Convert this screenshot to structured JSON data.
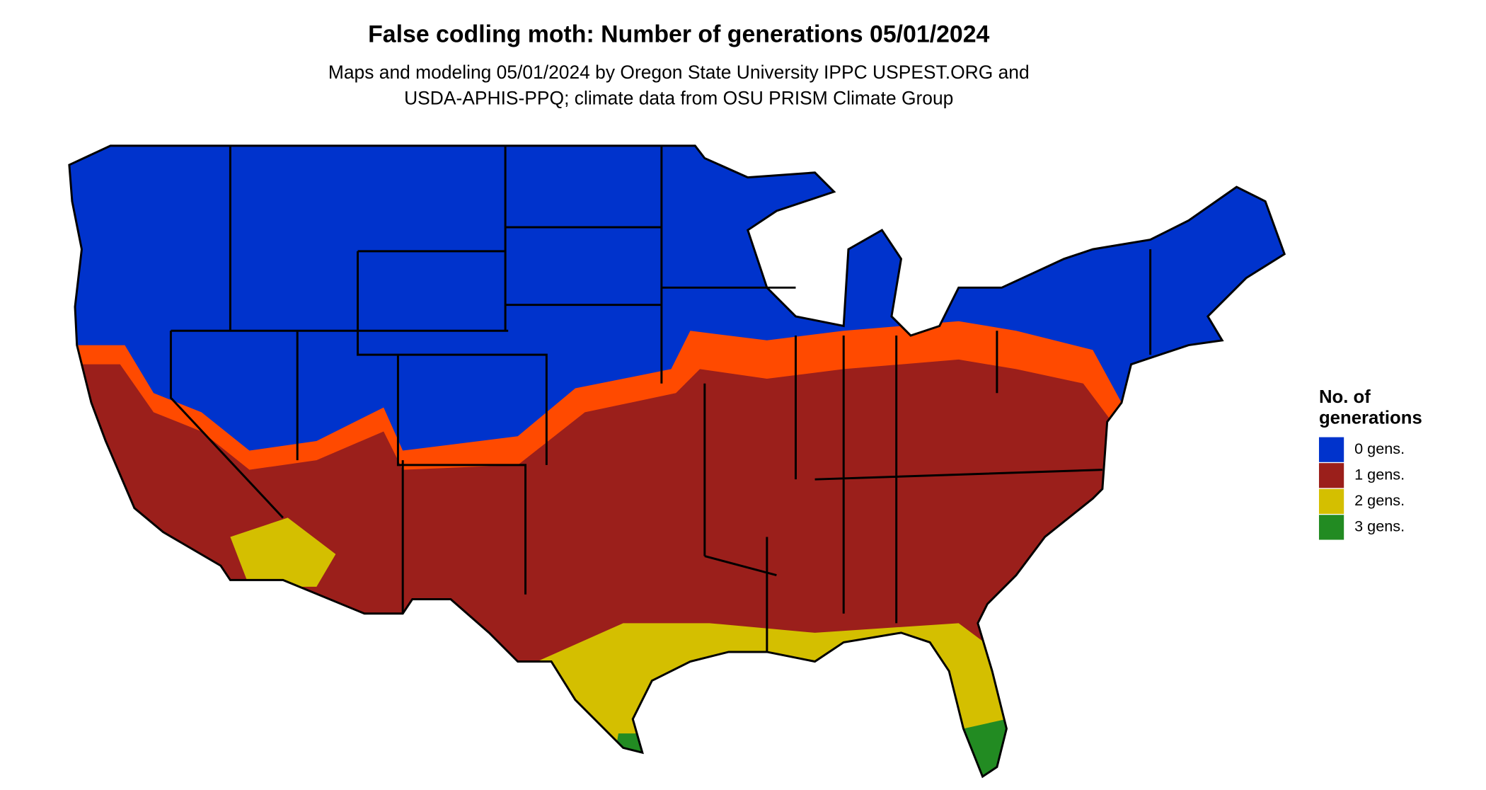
{
  "title": "False codling moth: Number of generations 05/01/2024",
  "subtitle": [
    "Maps and modeling 05/01/2024 by Oregon State University IPPC USPEST.ORG and",
    "USDA-APHIS-PPQ; climate data from OSU PRISM Climate Group"
  ],
  "legend": {
    "title": [
      "No. of",
      "generations"
    ],
    "items": [
      {
        "label": "0 gens.",
        "color": "#0033cc"
      },
      {
        "label": "1 gens.",
        "color": "#9b1f1b"
      },
      {
        "label": "2 gens.",
        "color": "#d4bf00"
      },
      {
        "label": "3 gens.",
        "color": "#228b22"
      }
    ]
  }
}
